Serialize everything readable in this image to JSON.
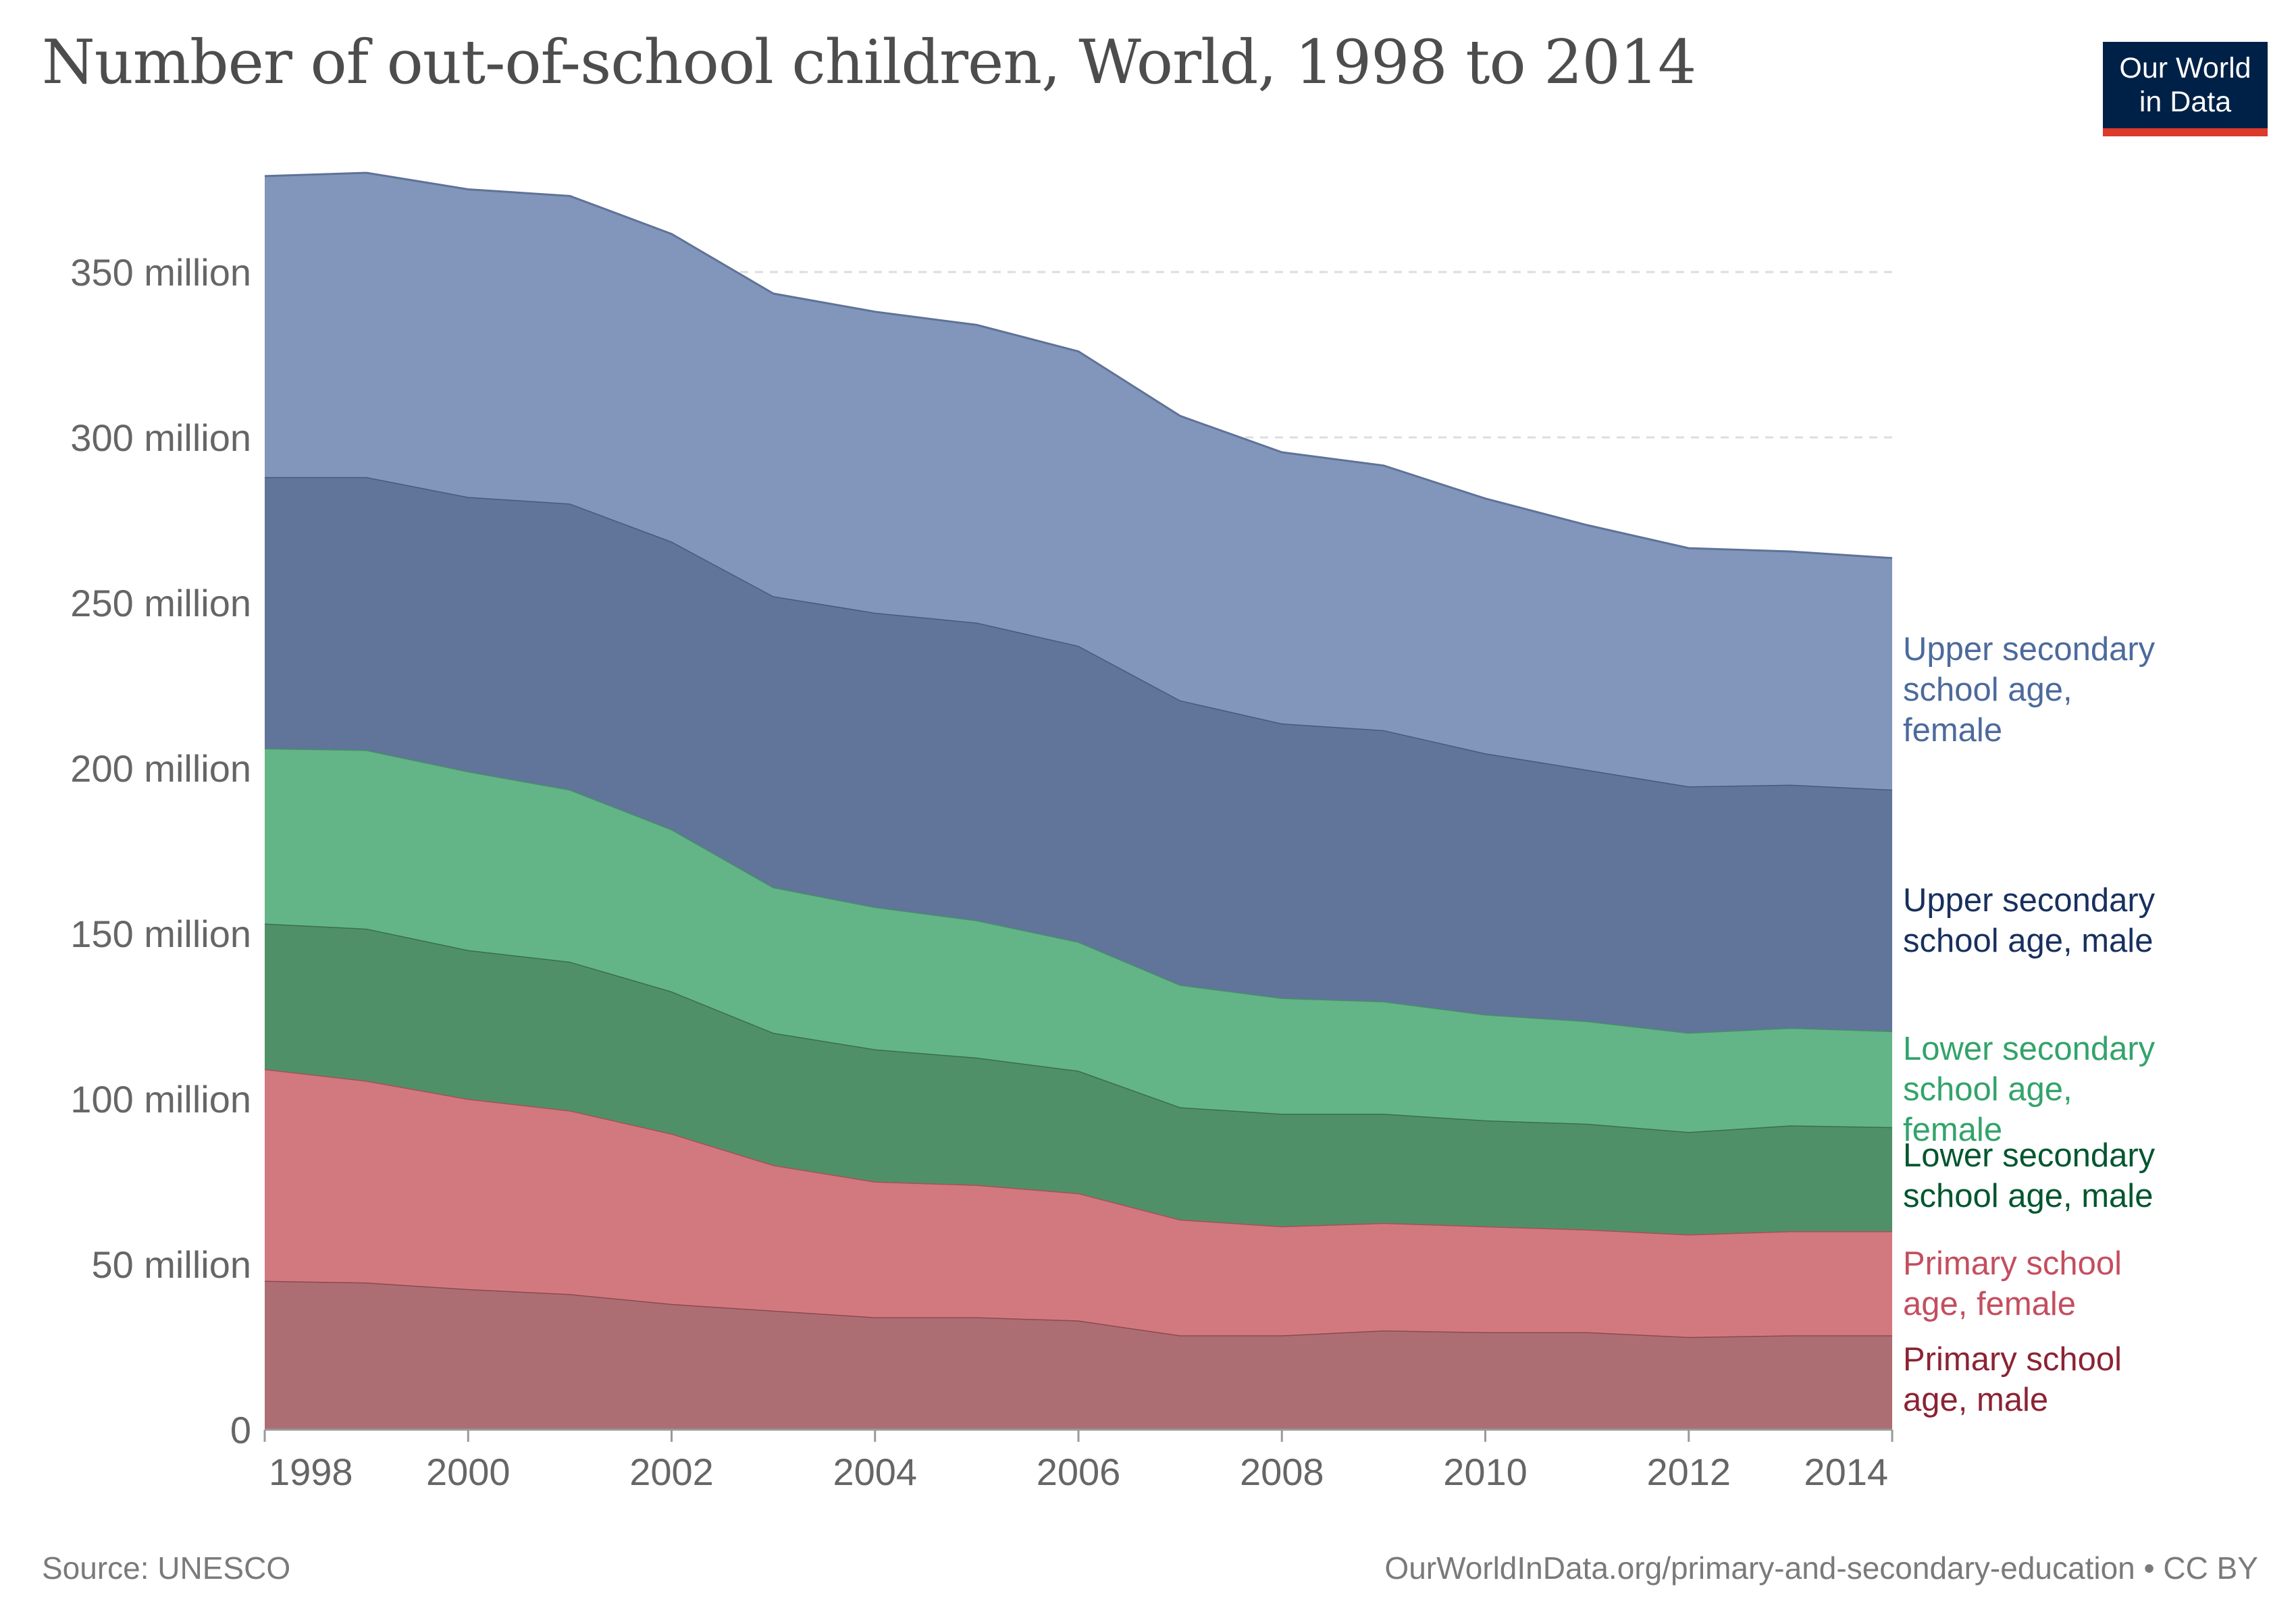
{
  "title": "Number of out-of-school children, World, 1998 to 2014",
  "logo": {
    "line1": "Our World",
    "line2": "in Data"
  },
  "footer": {
    "source": "Source: UNESCO",
    "credit": "OurWorldInData.org/primary-and-secondary-education • CC BY"
  },
  "chart_data": {
    "type": "area",
    "stacked": true,
    "title": "Number of out-of-school children, World, 1998 to 2014",
    "xlabel": "",
    "ylabel": "",
    "x": [
      1998,
      1999,
      2000,
      2001,
      2002,
      2003,
      2004,
      2005,
      2006,
      2007,
      2008,
      2009,
      2010,
      2011,
      2012,
      2013,
      2014
    ],
    "x_ticks": [
      "1998",
      "2000",
      "2002",
      "2004",
      "2006",
      "2008",
      "2010",
      "2012",
      "2014"
    ],
    "y_ticks": [
      "0",
      "50 million",
      "100 million",
      "150 million",
      "200 million",
      "250 million",
      "300 million",
      "350 million"
    ],
    "ylim": [
      0,
      380
    ],
    "y_unit": "million",
    "grid": "horizontal dashed",
    "legend": "right, inline labels",
    "series": [
      {
        "name": "Primary school age, male",
        "label_lines": [
          "Primary school",
          "age, male"
        ],
        "color": "#ac6e73",
        "line_color": "#8b4a50",
        "label_color": "#8b2333",
        "values": [
          45,
          44.5,
          42.5,
          41,
          38,
          36,
          34,
          34,
          33,
          28.5,
          28.5,
          30,
          29.5,
          29.5,
          28,
          28.5,
          28.5
        ]
      },
      {
        "name": "Primary school age, female",
        "label_lines": [
          "Primary school",
          "age, female"
        ],
        "color": "#d2797f",
        "line_color": "#a94f57",
        "label_color": "#c44e5f",
        "values": [
          64,
          61,
          57.5,
          55.5,
          51.5,
          44,
          41,
          40,
          38.5,
          35,
          33,
          32.5,
          32,
          31,
          31,
          31.5,
          31.5
        ]
      },
      {
        "name": "Lower secondary school age, male",
        "label_lines": [
          "Lower secondary",
          "school age, male"
        ],
        "color": "#509068",
        "line_color": "#3a6e50",
        "label_color": "#00562e",
        "values": [
          44,
          46,
          45,
          45,
          43,
          40,
          40,
          38.5,
          37,
          34,
          34,
          33,
          32,
          32,
          31,
          32,
          31.5
        ]
      },
      {
        "name": "Lower secondary school age, female",
        "label_lines": [
          "Lower secondary",
          "school age,",
          "female"
        ],
        "color": "#63b587",
        "line_color": "#47906a",
        "label_color": "#33a36b",
        "values": [
          53,
          54,
          54,
          52,
          49,
          44,
          43,
          41.5,
          39,
          37,
          35,
          34,
          32,
          31,
          30,
          29.5,
          29
        ]
      },
      {
        "name": "Upper secondary school age, male",
        "label_lines": [
          "Upper secondary",
          "school age, male"
        ],
        "color": "#61749a",
        "line_color": "#465a80",
        "label_color": "#18305e",
        "values": [
          82,
          82.5,
          83,
          86.5,
          87,
          88,
          89,
          90,
          89.5,
          86,
          83,
          82,
          79,
          76,
          74.5,
          73.5,
          73
        ]
      },
      {
        "name": "Upper secondary school age, female",
        "label_lines": [
          "Upper secondary",
          "school age,",
          "female"
        ],
        "color": "#8295bb",
        "line_color": "#5f7298",
        "label_color": "#4c6a9c",
        "values": [
          91,
          92,
          93,
          93,
          93,
          91.5,
          91,
          90,
          89,
          86,
          82,
          80,
          77,
          74,
          72,
          70.5,
          70
        ]
      }
    ]
  }
}
